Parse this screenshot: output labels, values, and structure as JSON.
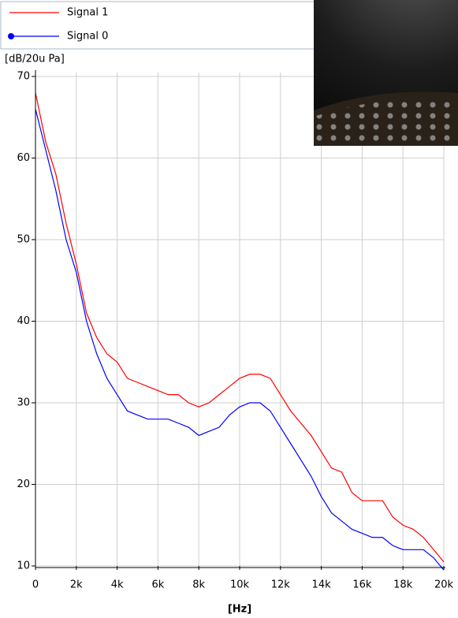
{
  "chart_data": {
    "type": "line",
    "y_axis_label": "[dB/20u Pa]",
    "x_axis_label": "[Hz]",
    "x": [
      0,
      500,
      1000,
      1500,
      2000,
      2500,
      3000,
      3500,
      4000,
      4500,
      5000,
      5500,
      6000,
      6500,
      7000,
      7500,
      8000,
      8500,
      9000,
      9500,
      10000,
      10500,
      11000,
      11500,
      12000,
      12500,
      13000,
      13500,
      14000,
      14500,
      15000,
      15500,
      16000,
      16500,
      17000,
      17500,
      18000,
      18500,
      19000,
      19500,
      20000
    ],
    "series": [
      {
        "name": "Signal 1",
        "color": "#ff0000",
        "values": [
          68,
          62,
          58,
          52,
          47,
          41,
          38,
          36,
          35,
          33,
          32.5,
          32,
          31.5,
          31,
          31,
          30,
          29.5,
          30,
          31,
          32,
          33,
          33.5,
          33.5,
          33,
          31,
          29,
          27.5,
          26,
          24,
          22,
          21.5,
          19,
          18,
          18,
          18,
          16,
          15,
          14.5,
          13.5,
          12,
          10.5
        ]
      },
      {
        "name": "Signal 0",
        "color": "#0000ff",
        "values": [
          66,
          61,
          56,
          50,
          46,
          40,
          36,
          33,
          31,
          29,
          28.5,
          28,
          28,
          28,
          27.5,
          27,
          26,
          26.5,
          27,
          28.5,
          29.5,
          30,
          30,
          29,
          27,
          25,
          23,
          21,
          18.5,
          16.5,
          15.5,
          14.5,
          14,
          13.5,
          13.5,
          12.5,
          12,
          12,
          12,
          11,
          9.5
        ]
      }
    ],
    "xlim": [
      0,
      20000
    ],
    "ylim": [
      10,
      70
    ],
    "xticks": [
      0,
      {
        "value": 2000,
        "label": "2k"
      },
      {
        "value": 4000,
        "label": "4k"
      },
      {
        "value": 6000,
        "label": "6k"
      },
      {
        "value": 8000,
        "label": "8k"
      },
      {
        "value": 10000,
        "label": "10k"
      },
      {
        "value": 12000,
        "label": "12k"
      },
      {
        "value": 14000,
        "label": "14k"
      },
      {
        "value": 16000,
        "label": "16k"
      },
      {
        "value": 18000,
        "label": "18k"
      },
      {
        "value": 20000,
        "label": "20k"
      }
    ],
    "yticks": [
      10,
      20,
      30,
      40,
      50,
      60,
      70
    ],
    "grid": true
  }
}
